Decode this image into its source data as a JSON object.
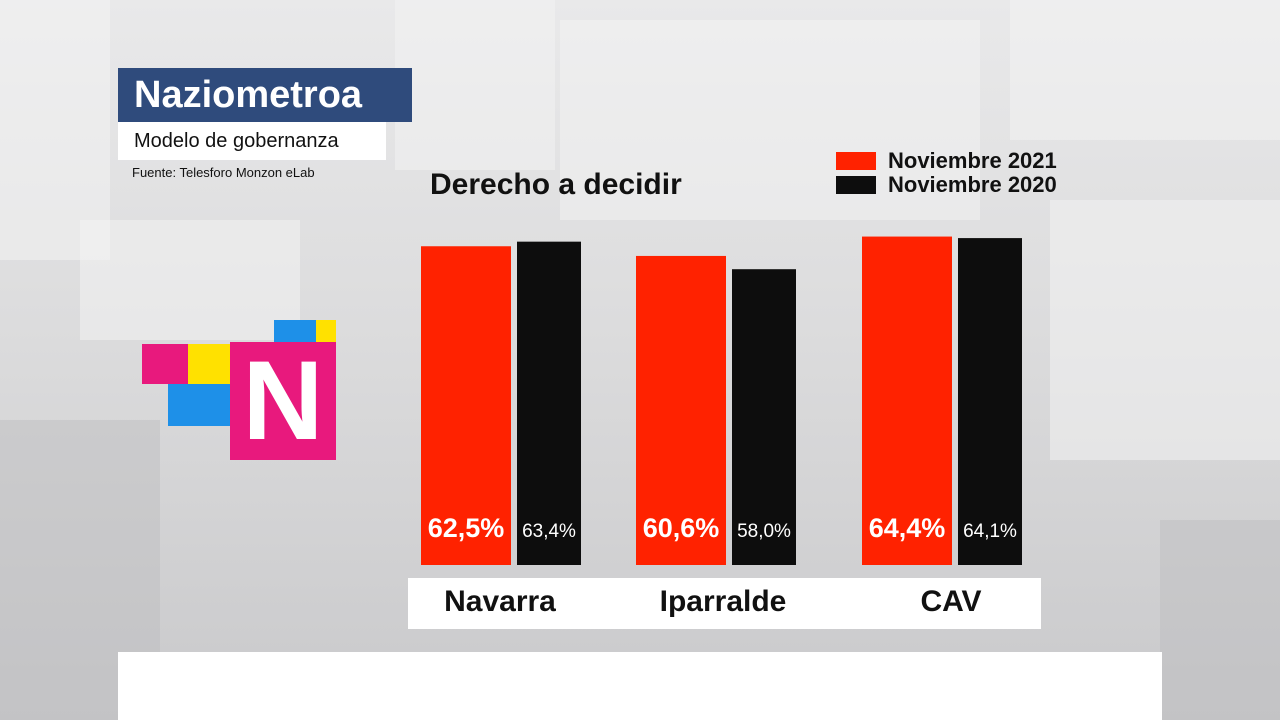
{
  "header": {
    "title": "Naziometroa",
    "subtitle": "Modelo de gobernanza",
    "source": "Fuente: Telesforo Monzon eLab"
  },
  "logo": {
    "letter": "N"
  },
  "colors": {
    "series_2021": "#ff2200",
    "series_2020": "#0d0d0d",
    "title_bg": "#2f4b7c",
    "logo_pink": "#e8197d",
    "logo_yellow": "#ffe100",
    "logo_blue": "#1e90e8"
  },
  "chart_data": {
    "type": "bar",
    "title": "Derecho a decidir",
    "categories": [
      "Navarra",
      "Iparralde",
      "CAV"
    ],
    "series": [
      {
        "name": "Noviembre 2021",
        "values": [
          62.5,
          60.6,
          64.4
        ],
        "labels": [
          "62,5%",
          "60,6%",
          "64,4%"
        ]
      },
      {
        "name": "Noviembre 2020",
        "values": [
          63.4,
          58.0,
          64.1
        ],
        "labels": [
          "63,4%",
          "58,0%",
          "64,1%"
        ]
      }
    ],
    "legend_position": "top-right",
    "grid": false
  }
}
